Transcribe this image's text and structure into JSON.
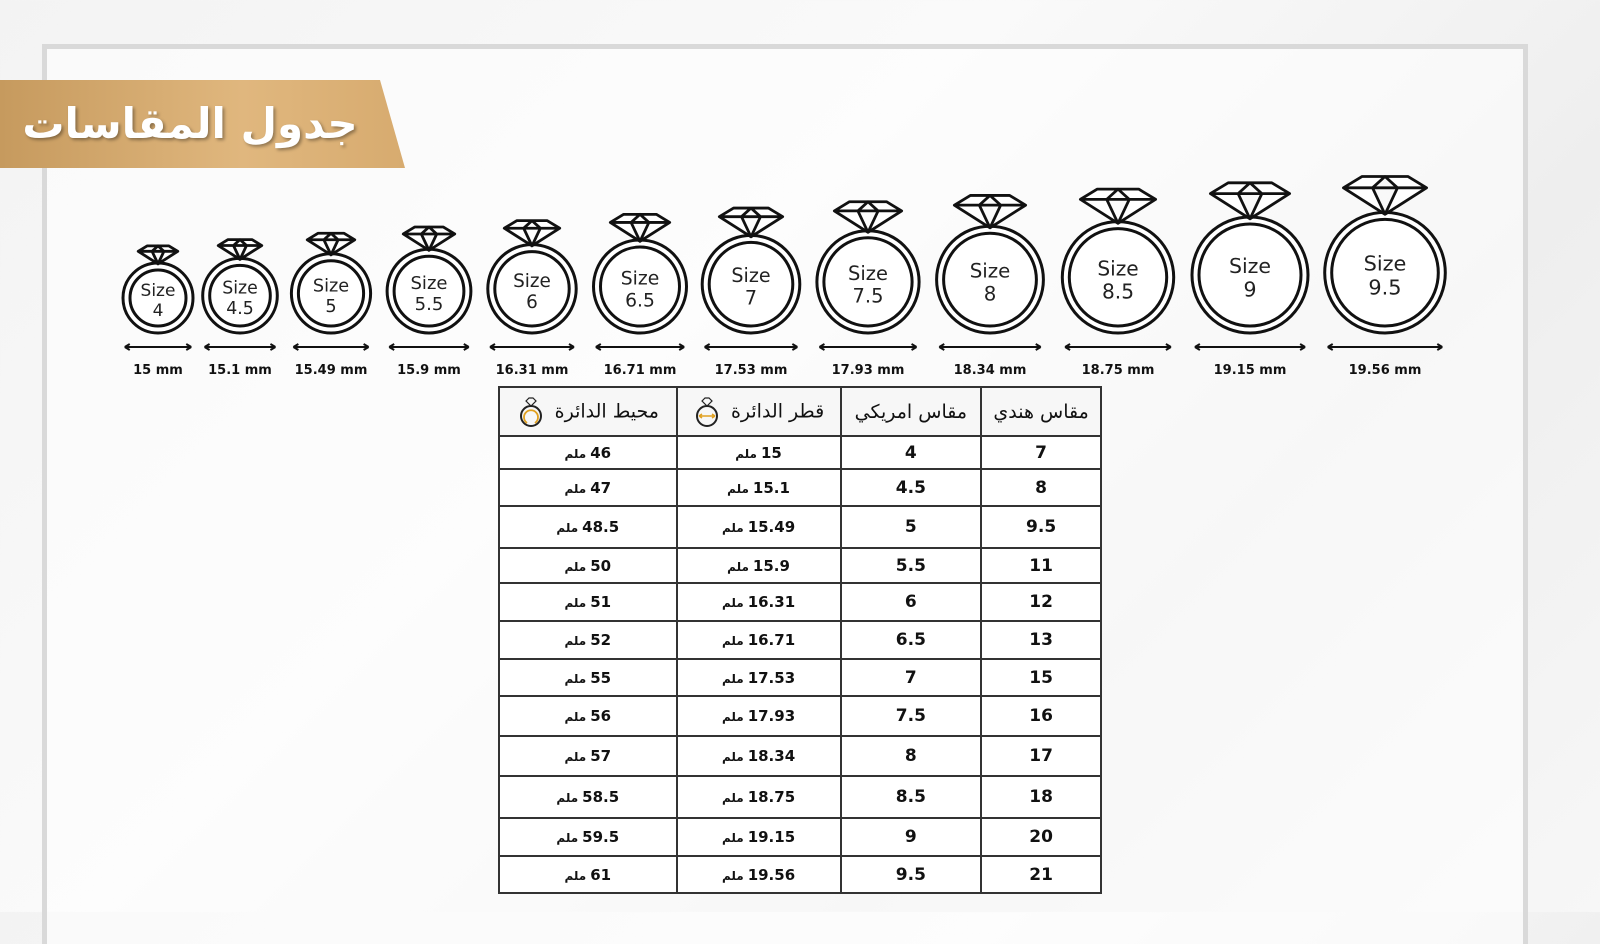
{
  "title": "جدول المقاسات",
  "colors": {
    "banner": "#d4a96b",
    "accent_arrow": "#e0a020",
    "ink": "#111111"
  },
  "rings": [
    {
      "label": "Size",
      "size": "4",
      "mm": "15 mm"
    },
    {
      "label": "Size",
      "size": "4.5",
      "mm": "15.1 mm"
    },
    {
      "label": "Size",
      "size": "5",
      "mm": "15.49 mm"
    },
    {
      "label": "Size",
      "size": "5.5",
      "mm": "15.9 mm"
    },
    {
      "label": "Size",
      "size": "6",
      "mm": "16.31 mm"
    },
    {
      "label": "Size",
      "size": "6.5",
      "mm": "16.71 mm"
    },
    {
      "label": "Size",
      "size": "7",
      "mm": "17.53 mm"
    },
    {
      "label": "Size",
      "size": "7.5",
      "mm": "17.93 mm"
    },
    {
      "label": "Size",
      "size": "8",
      "mm": "18.34 mm"
    },
    {
      "label": "Size",
      "size": "8.5",
      "mm": "18.75 mm"
    },
    {
      "label": "Size",
      "size": "9",
      "mm": "19.15 mm"
    },
    {
      "label": "Size",
      "size": "9.5",
      "mm": "19.56 mm"
    }
  ],
  "table": {
    "headers": [
      "مقاس هندي",
      "مقاس امريكي",
      "قطر الدائرة",
      "محيط الدائرة"
    ],
    "unit": "ملم",
    "rows": [
      [
        "7",
        "4",
        "15",
        "46"
      ],
      [
        "8",
        "4.5",
        "15.1",
        "47"
      ],
      [
        "9.5",
        "5",
        "15.49",
        "48.5"
      ],
      [
        "11",
        "5.5",
        "15.9",
        "50"
      ],
      [
        "12",
        "6",
        "16.31",
        "51"
      ],
      [
        "13",
        "6.5",
        "16.71",
        "52"
      ],
      [
        "15",
        "7",
        "17.53",
        "55"
      ],
      [
        "16",
        "7.5",
        "17.93",
        "56"
      ],
      [
        "17",
        "8",
        "18.34",
        "57"
      ],
      [
        "18",
        "8.5",
        "18.75",
        "58.5"
      ],
      [
        "20",
        "9",
        "19.15",
        "59.5"
      ],
      [
        "21",
        "9.5",
        "19.56",
        "61"
      ]
    ]
  }
}
